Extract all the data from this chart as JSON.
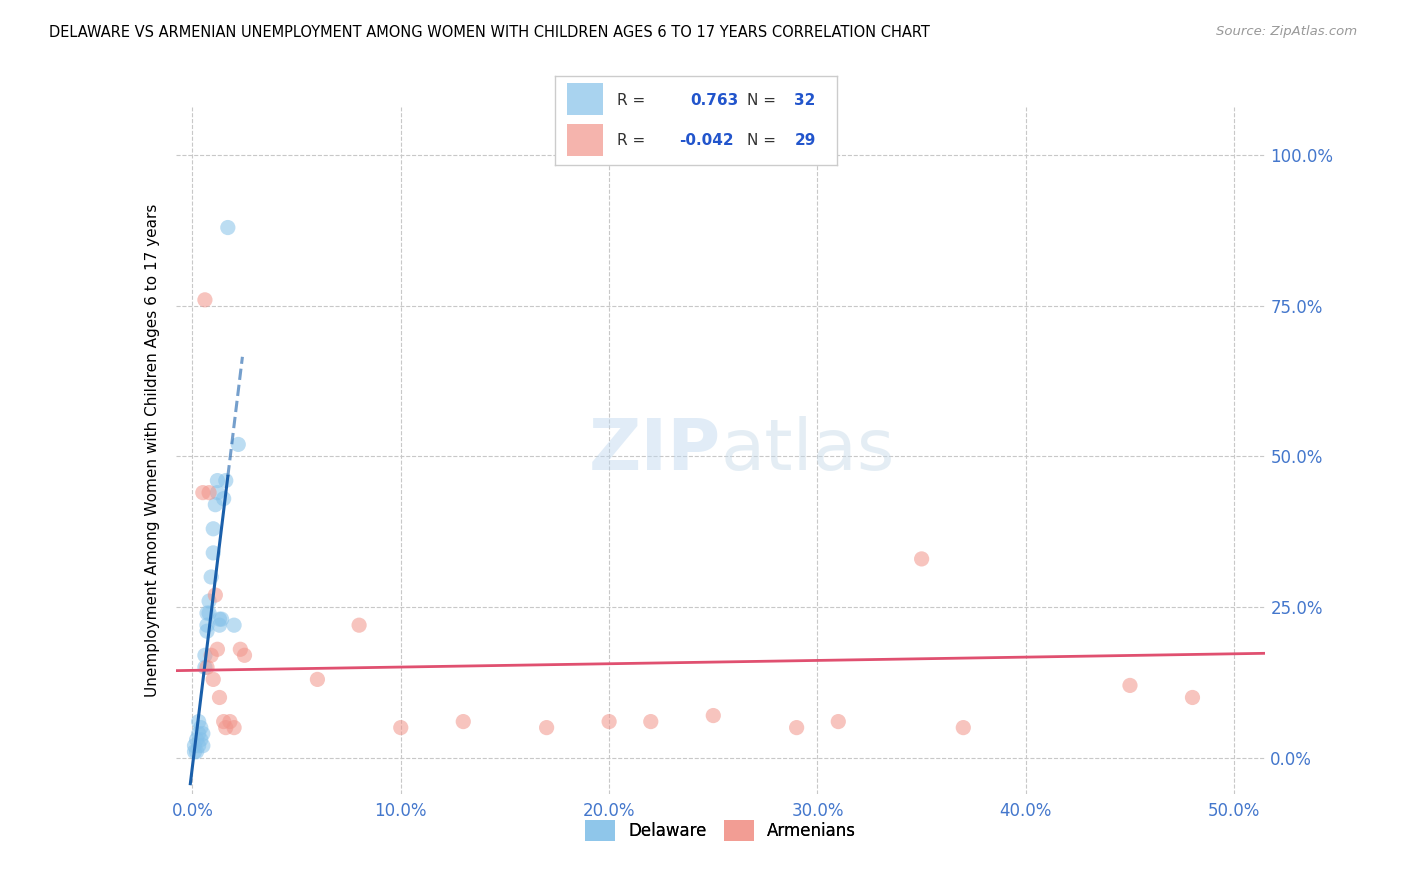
{
  "title": "DELAWARE VS ARMENIAN UNEMPLOYMENT AMONG WOMEN WITH CHILDREN AGES 6 TO 17 YEARS CORRELATION CHART",
  "source": "Source: ZipAtlas.com",
  "ylabel_label": "Unemployment Among Women with Children Ages 6 to 17 years",
  "watermark_zip": "ZIP",
  "watermark_atlas": "atlas",
  "delaware_color": "#85c1e9",
  "armenian_color": "#f1948a",
  "delaware_line_color": "#1a5faa",
  "armenian_line_color": "#e05070",
  "grid_color": "#c8c8c8",
  "background_color": "#ffffff",
  "delaware_x": [
    0.001,
    0.001,
    0.002,
    0.002,
    0.003,
    0.003,
    0.003,
    0.004,
    0.004,
    0.005,
    0.005,
    0.006,
    0.006,
    0.007,
    0.007,
    0.007,
    0.008,
    0.008,
    0.009,
    0.01,
    0.01,
    0.011,
    0.012,
    0.012,
    0.013,
    0.013,
    0.014,
    0.015,
    0.016,
    0.017,
    0.02,
    0.022
  ],
  "delaware_y": [
    0.01,
    0.02,
    0.01,
    0.03,
    0.02,
    0.04,
    0.06,
    0.03,
    0.05,
    0.02,
    0.04,
    0.15,
    0.17,
    0.21,
    0.22,
    0.24,
    0.24,
    0.26,
    0.3,
    0.34,
    0.38,
    0.42,
    0.44,
    0.46,
    0.22,
    0.23,
    0.23,
    0.43,
    0.46,
    0.88,
    0.22,
    0.52
  ],
  "armenian_x": [
    0.005,
    0.006,
    0.007,
    0.008,
    0.009,
    0.01,
    0.011,
    0.012,
    0.013,
    0.015,
    0.016,
    0.018,
    0.02,
    0.023,
    0.025,
    0.06,
    0.08,
    0.1,
    0.13,
    0.17,
    0.2,
    0.22,
    0.25,
    0.29,
    0.31,
    0.35,
    0.37,
    0.45,
    0.48
  ],
  "armenian_y": [
    0.44,
    0.76,
    0.15,
    0.44,
    0.17,
    0.13,
    0.27,
    0.18,
    0.1,
    0.06,
    0.05,
    0.06,
    0.05,
    0.18,
    0.17,
    0.13,
    0.22,
    0.05,
    0.06,
    0.05,
    0.06,
    0.06,
    0.07,
    0.05,
    0.06,
    0.33,
    0.05,
    0.12,
    0.1
  ],
  "delaware_R": 0.763,
  "delaware_N": 32,
  "armenian_R": -0.042,
  "armenian_N": 29,
  "xlim": [
    -0.008,
    0.515
  ],
  "ylim": [
    -0.06,
    1.08
  ],
  "xticks": [
    0.0,
    0.1,
    0.2,
    0.3,
    0.4,
    0.5
  ],
  "xticklabels": [
    "0.0%",
    "10.0%",
    "20.0%",
    "30.0%",
    "40.0%",
    "50.0%"
  ],
  "yticks": [
    0.0,
    0.25,
    0.5,
    0.75,
    1.0
  ],
  "yticklabels_right": [
    "0.0%",
    "25.0%",
    "50.0%",
    "75.0%",
    "100.0%"
  ],
  "tick_color": "#4477cc",
  "scatter_size": 120,
  "scatter_alpha": 0.55
}
